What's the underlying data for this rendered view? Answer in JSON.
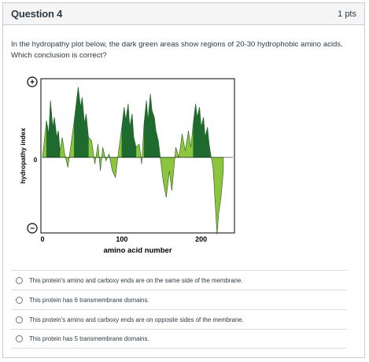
{
  "question": {
    "title": "Question 4",
    "points": "1 pts",
    "prompt": "In the hydropathy plot below, the dark green areas show regions of 20-30 hydrophobic amino acids. Which conclusion is correct?"
  },
  "figure": {
    "y_axis_label": "hydropathy index",
    "x_axis_label": "amino acid number",
    "plus_symbol": "+",
    "minus_symbol": "−",
    "zero_label": "0",
    "x_ticks": [
      "0",
      "100",
      "200"
    ],
    "x_tick_values": [
      0,
      100,
      200
    ],
    "colors": {
      "dark_green": "#1f6b2f",
      "light_green": "#8cc63f",
      "frame": "#000000"
    }
  },
  "chart_data": {
    "type": "area",
    "xlabel": "amino acid number",
    "ylabel": "hydropathy index",
    "xlim": [
      0,
      240
    ],
    "x_ticks": [
      0,
      100,
      200
    ],
    "dark_green_segments": [
      [
        5,
        22
      ],
      [
        40,
        58
      ],
      [
        100,
        118
      ],
      [
        128,
        148
      ],
      [
        190,
        212
      ]
    ],
    "profile_x": [
      0,
      5,
      8,
      10,
      13,
      15,
      18,
      20,
      22,
      25,
      28,
      32,
      36,
      40,
      43,
      45,
      48,
      50,
      53,
      55,
      58,
      62,
      66,
      70,
      73,
      76,
      80,
      84,
      88,
      92,
      96,
      100,
      103,
      105,
      108,
      110,
      113,
      115,
      118,
      122,
      125,
      128,
      131,
      133,
      136,
      138,
      141,
      143,
      146,
      148,
      152,
      156,
      160,
      163,
      165,
      168,
      172,
      176,
      180,
      184,
      187,
      190,
      193,
      195,
      198,
      200,
      203,
      205,
      208,
      210,
      212,
      215,
      218,
      220,
      222,
      225,
      228
    ],
    "profile_y": [
      0,
      0.55,
      0.35,
      0.85,
      0.45,
      0.6,
      0.3,
      0.4,
      0.1,
      0.3,
      0.05,
      -0.15,
      0.2,
      0.55,
      0.85,
      1.05,
      0.75,
      0.9,
      0.5,
      0.65,
      0.3,
      0.25,
      -0.1,
      0.2,
      -0.2,
      0.15,
      -0.05,
      0.05,
      -0.2,
      -0.3,
      0.1,
      0.45,
      0.75,
      0.55,
      0.8,
      0.45,
      0.65,
      0.3,
      0.15,
      0.2,
      -0.1,
      0.5,
      0.85,
      0.55,
      0.95,
      0.7,
      0.6,
      0.4,
      0.25,
      0.05,
      -0.35,
      -0.6,
      -0.2,
      -0.5,
      -0.25,
      0.15,
      0.0,
      0.35,
      0.1,
      0.4,
      0.15,
      0.5,
      0.8,
      0.6,
      0.75,
      0.45,
      0.6,
      0.3,
      0.45,
      0.2,
      0.05,
      -0.15,
      -0.75,
      -1.15,
      -0.85,
      -0.6,
      -0.2
    ]
  },
  "answers": [
    "This protein's amino and carboxy ends are on the same side of the membrane.",
    "This protein has 6 transmembrane domains.",
    "This protein's amino and carboxy ends are on opposite sides of the membrane.",
    "This protein has 5 transmembrane domains."
  ]
}
